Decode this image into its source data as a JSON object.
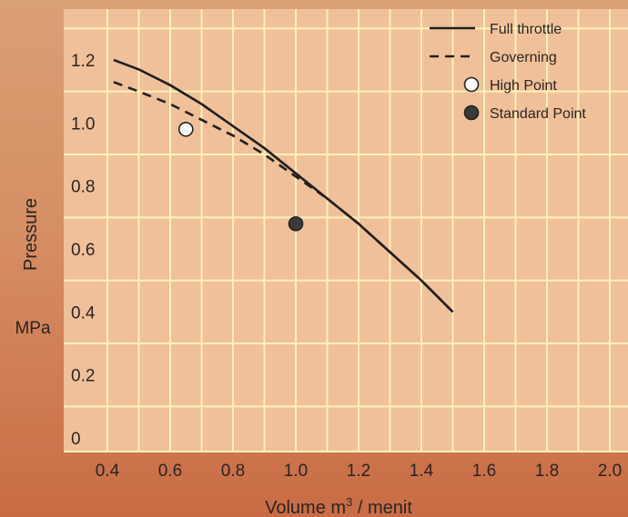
{
  "chart_data": {
    "type": "line",
    "xlabel": "Volume m",
    "xlabel_sup": "3",
    "xlabel_suffix": " / menit",
    "ylabel": "Pressure",
    "yunit": "MPa",
    "xlim": [
      0.4,
      2.0
    ],
    "ylim": [
      0,
      1.3
    ],
    "x_ticks": [
      "0.4",
      "0.6",
      "0.8",
      "1.0",
      "1.2",
      "1.4",
      "1.6",
      "1.8",
      "2.0"
    ],
    "y_ticks": [
      "0",
      "0.2",
      "0.4",
      "0.6",
      "0.8",
      "1.0",
      "1.2"
    ],
    "grid": true,
    "legend_position": "top-right",
    "series": [
      {
        "name": "Full throttle",
        "style": "solid",
        "x": [
          0.42,
          0.5,
          0.6,
          0.7,
          0.8,
          0.9,
          1.0,
          1.1,
          1.2,
          1.3,
          1.4,
          1.5
        ],
        "y": [
          1.2,
          1.17,
          1.12,
          1.06,
          0.99,
          0.92,
          0.84,
          0.76,
          0.68,
          0.59,
          0.5,
          0.4
        ]
      },
      {
        "name": "Governing",
        "style": "dashed",
        "x": [
          0.42,
          0.5,
          0.6,
          0.7,
          0.8,
          0.9,
          1.0,
          1.1,
          1.2,
          1.3,
          1.4,
          1.5
        ],
        "y": [
          1.13,
          1.1,
          1.06,
          1.01,
          0.96,
          0.9,
          0.83,
          0.76,
          0.68,
          0.59,
          0.5,
          0.4
        ]
      }
    ],
    "points": [
      {
        "name": "High Point",
        "x": 0.65,
        "y": 0.98,
        "fill": "#ffffff"
      },
      {
        "name": "Standard Point",
        "x": 1.0,
        "y": 0.68,
        "fill": "#3a3a3a"
      }
    ],
    "colors": {
      "plot_bg": "#f0c09a",
      "grid": "#fbf2b8",
      "line": "#1f1f1f"
    }
  }
}
